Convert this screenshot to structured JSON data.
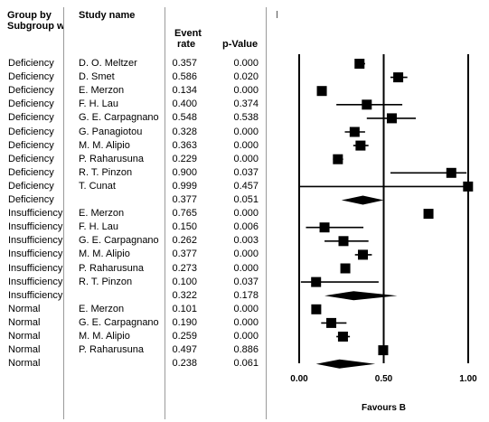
{
  "headers": {
    "group_by": "Group by",
    "subgroup": "Subgroup w",
    "study_name": "Study name",
    "event_rate_1": "Event",
    "event_rate_2": "rate",
    "p_value": "p-Value"
  },
  "chart_data": {
    "type": "forest",
    "xlim": [
      0,
      1
    ],
    "xticks": [
      "0.00",
      "0.50",
      "1.00"
    ],
    "xlabel": "Favours B",
    "rows": [
      {
        "subgroup": "Deficiency",
        "study": "D. O. Meltzer",
        "event_rate": "0.357",
        "p_value": "0.000",
        "est": 0.357,
        "lo": 0.33,
        "hi": 0.39,
        "summary": false
      },
      {
        "subgroup": "Deficiency",
        "study": "D. Smet",
        "event_rate": "0.586",
        "p_value": "0.020",
        "est": 0.586,
        "lo": 0.54,
        "hi": 0.64,
        "summary": false
      },
      {
        "subgroup": "Deficiency",
        "study": "E. Merzon",
        "event_rate": "0.134",
        "p_value": "0.000",
        "est": 0.134,
        "lo": 0.12,
        "hi": 0.15,
        "summary": false
      },
      {
        "subgroup": "Deficiency",
        "study": "F. H. Lau",
        "event_rate": "0.400",
        "p_value": "0.374",
        "est": 0.4,
        "lo": 0.22,
        "hi": 0.61,
        "summary": false
      },
      {
        "subgroup": "Deficiency",
        "study": "G. E. Carpagnano",
        "event_rate": "0.548",
        "p_value": "0.538",
        "est": 0.548,
        "lo": 0.4,
        "hi": 0.69,
        "summary": false
      },
      {
        "subgroup": "Deficiency",
        "study": "G. Panagiotou",
        "event_rate": "0.328",
        "p_value": "0.000",
        "est": 0.328,
        "lo": 0.27,
        "hi": 0.39,
        "summary": false
      },
      {
        "subgroup": "Deficiency",
        "study": "M. M. Alipio",
        "event_rate": "0.363",
        "p_value": "0.000",
        "est": 0.363,
        "lo": 0.32,
        "hi": 0.41,
        "summary": false
      },
      {
        "subgroup": "Deficiency",
        "study": "P. Raharusuna",
        "event_rate": "0.229",
        "p_value": "0.000",
        "est": 0.229,
        "lo": 0.2,
        "hi": 0.26,
        "summary": false
      },
      {
        "subgroup": "Deficiency",
        "study": "R. T. Pinzon",
        "event_rate": "0.900",
        "p_value": "0.037",
        "est": 0.9,
        "lo": 0.54,
        "hi": 0.99,
        "summary": false
      },
      {
        "subgroup": "Deficiency",
        "study": "T. Cunat",
        "event_rate": "0.999",
        "p_value": "0.457",
        "est": 0.999,
        "lo": 0.0,
        "hi": 1.0,
        "summary": false
      },
      {
        "subgroup": "Deficiency",
        "study": "",
        "event_rate": "0.377",
        "p_value": "0.051",
        "est": 0.377,
        "lo": 0.25,
        "hi": 0.5,
        "summary": true
      },
      {
        "subgroup": "Insufficiency",
        "study": "E. Merzon",
        "event_rate": "0.765",
        "p_value": "0.000",
        "est": 0.765,
        "lo": 0.75,
        "hi": 0.78,
        "summary": false
      },
      {
        "subgroup": "Insufficiency",
        "study": "F. H. Lau",
        "event_rate": "0.150",
        "p_value": "0.006",
        "est": 0.15,
        "lo": 0.04,
        "hi": 0.38,
        "summary": false
      },
      {
        "subgroup": "Insufficiency",
        "study": "G. E. Carpagnano",
        "event_rate": "0.262",
        "p_value": "0.003",
        "est": 0.262,
        "lo": 0.15,
        "hi": 0.41,
        "summary": false
      },
      {
        "subgroup": "Insufficiency",
        "study": "M. M. Alipio",
        "event_rate": "0.377",
        "p_value": "0.000",
        "est": 0.377,
        "lo": 0.33,
        "hi": 0.43,
        "summary": false
      },
      {
        "subgroup": "Insufficiency",
        "study": "P. Raharusuna",
        "event_rate": "0.273",
        "p_value": "0.000",
        "est": 0.273,
        "lo": 0.25,
        "hi": 0.3,
        "summary": false
      },
      {
        "subgroup": "Insufficiency",
        "study": "R. T. Pinzon",
        "event_rate": "0.100",
        "p_value": "0.037",
        "est": 0.1,
        "lo": 0.01,
        "hi": 0.47,
        "summary": false
      },
      {
        "subgroup": "Insufficiency",
        "study": "",
        "event_rate": "0.322",
        "p_value": "0.178",
        "est": 0.322,
        "lo": 0.15,
        "hi": 0.58,
        "summary": true
      },
      {
        "subgroup": "Normal",
        "study": "E. Merzon",
        "event_rate": "0.101",
        "p_value": "0.000",
        "est": 0.101,
        "lo": 0.09,
        "hi": 0.11,
        "summary": false
      },
      {
        "subgroup": "Normal",
        "study": "G. E. Carpagnano",
        "event_rate": "0.190",
        "p_value": "0.000",
        "est": 0.19,
        "lo": 0.13,
        "hi": 0.28,
        "summary": false
      },
      {
        "subgroup": "Normal",
        "study": "M. M. Alipio",
        "event_rate": "0.259",
        "p_value": "0.000",
        "est": 0.259,
        "lo": 0.22,
        "hi": 0.3,
        "summary": false
      },
      {
        "subgroup": "Normal",
        "study": "P. Raharusuna",
        "event_rate": "0.497",
        "p_value": "0.886",
        "est": 0.497,
        "lo": 0.48,
        "hi": 0.52,
        "summary": false
      },
      {
        "subgroup": "Normal",
        "study": "",
        "event_rate": "0.238",
        "p_value": "0.061",
        "est": 0.238,
        "lo": 0.1,
        "hi": 0.45,
        "summary": true
      }
    ]
  }
}
